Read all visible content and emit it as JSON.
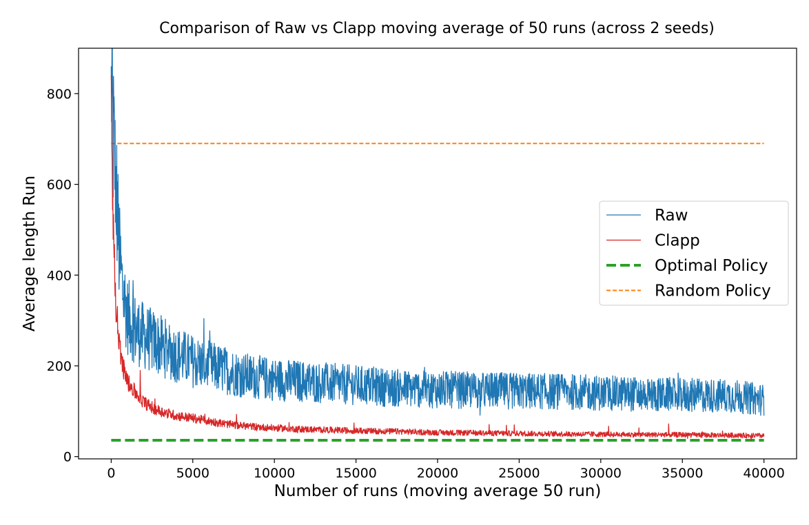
{
  "chart_data": {
    "type": "line",
    "title": "Comparison of Raw vs Clapp moving average of 50 runs (across 2 seeds)",
    "xlabel": "Number of runs (moving average 50 run)",
    "ylabel": "Average length Run",
    "xlim": [
      -2000,
      42000
    ],
    "ylim": [
      -5,
      900
    ],
    "xticks": [
      0,
      5000,
      10000,
      15000,
      20000,
      25000,
      30000,
      35000,
      40000
    ],
    "yticks": [
      0,
      200,
      400,
      600,
      800
    ],
    "grid": false,
    "legend_position": "center-right",
    "series": [
      {
        "name": "Raw",
        "color": "#1f77b4",
        "style": "solid",
        "x": [
          0,
          50,
          100,
          200,
          300,
          400,
          500,
          700,
          1000,
          1500,
          2000,
          3000,
          4000,
          5000,
          6000,
          7000,
          8000,
          9000,
          10000,
          12000,
          14000,
          16000,
          18000,
          20000,
          22000,
          24000,
          26000,
          28000,
          30000,
          32000,
          34000,
          36000,
          38000,
          40000
        ],
        "y": [
          860,
          780,
          710,
          660,
          600,
          520,
          440,
          370,
          310,
          280,
          265,
          245,
          225,
          210,
          200,
          190,
          180,
          175,
          170,
          165,
          160,
          155,
          150,
          148,
          146,
          145,
          144,
          143,
          140,
          138,
          136,
          135,
          134,
          125
        ]
      },
      {
        "name": "Clapp",
        "color": "#d62728",
        "style": "solid",
        "x": [
          0,
          50,
          100,
          200,
          300,
          500,
          700,
          1000,
          1500,
          2000,
          2500,
          3000,
          4000,
          5000,
          6000,
          7000,
          8000,
          10000,
          12000,
          15000,
          18000,
          20000,
          25000,
          30000,
          35000,
          40000
        ],
        "y": [
          840,
          700,
          560,
          420,
          330,
          250,
          200,
          165,
          140,
          120,
          108,
          100,
          90,
          85,
          78,
          72,
          68,
          63,
          60,
          57,
          55,
          53,
          51,
          49,
          48,
          46
        ]
      },
      {
        "name": "Optimal Policy",
        "color": "#2ca02c",
        "style": "dashed-thick",
        "x": [
          0,
          40000
        ],
        "y": [
          36,
          36
        ]
      },
      {
        "name": "Random Policy",
        "color": "#ff7f0e",
        "style": "dashed",
        "x": [
          0,
          40000
        ],
        "y": [
          690,
          690
        ]
      }
    ]
  }
}
